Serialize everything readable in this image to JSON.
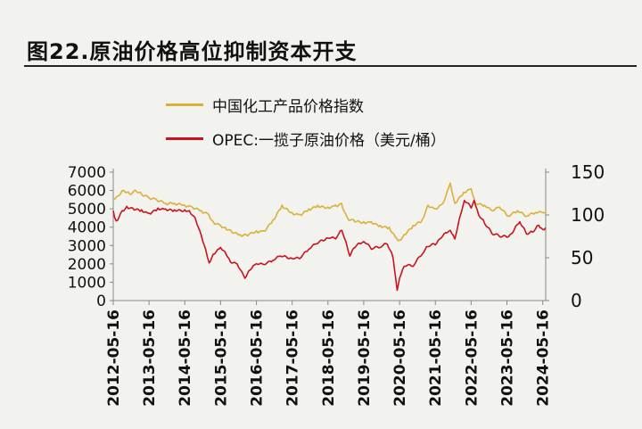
{
  "title": "图22.原油价格高位抑制资本开支",
  "colors": {
    "series1": "#D9B13A",
    "series2": "#C8141E",
    "axis": "#888888",
    "background": "#f2f2ee"
  },
  "chart_data": {
    "type": "line",
    "legend_placement": "top",
    "grid": false,
    "x_tick_labels": [
      "2012-05-16",
      "2013-05-16",
      "2014-05-16",
      "2015-05-16",
      "2016-05-16",
      "2017-05-16",
      "2018-05-16",
      "2019-05-16",
      "2020-05-16",
      "2021-05-16",
      "2022-05-16",
      "2023-05-16",
      "2024-05-16"
    ],
    "xlim": [
      "2012-05-16",
      "2024-06-15"
    ],
    "y_left": {
      "ticks": [
        0,
        1000,
        2000,
        3000,
        4000,
        5000,
        6000,
        7000
      ],
      "ylim": [
        0,
        7000
      ]
    },
    "y_right": {
      "ticks": [
        0,
        50,
        100,
        150
      ],
      "ylim": [
        0,
        150
      ]
    },
    "series": [
      {
        "name": "中国化工产品价格指数",
        "axis": "left",
        "color": "#D9B13A",
        "x": [
          "2012-05-16",
          "2012-07-01",
          "2012-09-01",
          "2012-11-01",
          "2013-01-01",
          "2013-03-01",
          "2013-05-16",
          "2013-08-01",
          "2013-11-01",
          "2014-02-01",
          "2014-05-16",
          "2014-08-01",
          "2014-11-01",
          "2015-01-15",
          "2015-03-01",
          "2015-05-16",
          "2015-07-01",
          "2015-09-01",
          "2015-12-01",
          "2016-02-01",
          "2016-05-16",
          "2016-08-01",
          "2016-11-01",
          "2017-02-01",
          "2017-05-16",
          "2017-08-01",
          "2017-11-01",
          "2018-02-01",
          "2018-05-16",
          "2018-08-01",
          "2018-10-01",
          "2018-12-01",
          "2019-02-01",
          "2019-05-16",
          "2019-08-01",
          "2019-11-01",
          "2020-02-01",
          "2020-04-15",
          "2020-05-16",
          "2020-07-01",
          "2020-10-01",
          "2021-01-01",
          "2021-03-01",
          "2021-05-16",
          "2021-08-01",
          "2021-10-15",
          "2021-12-01",
          "2022-03-01",
          "2022-05-16",
          "2022-07-01",
          "2022-10-01",
          "2022-12-15",
          "2023-03-01",
          "2023-06-01",
          "2023-09-01",
          "2023-12-01",
          "2024-03-01",
          "2024-05-16",
          "2024-06-15"
        ],
        "y": [
          5500,
          5700,
          6000,
          5800,
          6000,
          5800,
          5600,
          5500,
          5300,
          5300,
          5200,
          5100,
          4900,
          4700,
          4300,
          4100,
          4000,
          3800,
          3600,
          3600,
          3800,
          3800,
          4400,
          5200,
          4800,
          4700,
          5000,
          5200,
          5100,
          5200,
          5300,
          4500,
          4400,
          4300,
          4300,
          4100,
          4000,
          3400,
          3300,
          3600,
          4100,
          4400,
          5200,
          5000,
          5300,
          6400,
          5300,
          5900,
          6100,
          5300,
          5200,
          4900,
          5100,
          4600,
          4900,
          4600,
          4800,
          4800,
          4800
        ]
      },
      {
        "name": "OPEC:一揽子原油价格（美元/桶）",
        "axis": "right",
        "color": "#C8141E",
        "x": [
          "2012-05-16",
          "2012-06-15",
          "2012-08-15",
          "2012-10-01",
          "2012-12-01",
          "2013-03-01",
          "2013-05-16",
          "2013-08-15",
          "2013-11-01",
          "2014-02-01",
          "2014-05-16",
          "2014-07-01",
          "2014-09-01",
          "2014-11-01",
          "2014-12-15",
          "2015-01-20",
          "2015-03-01",
          "2015-05-16",
          "2015-07-01",
          "2015-08-25",
          "2015-11-01",
          "2016-01-20",
          "2016-03-01",
          "2016-05-16",
          "2016-08-01",
          "2016-11-01",
          "2017-01-15",
          "2017-05-16",
          "2017-08-01",
          "2017-11-01",
          "2018-01-15",
          "2018-05-16",
          "2018-08-01",
          "2018-10-05",
          "2018-12-25",
          "2019-02-01",
          "2019-05-16",
          "2019-08-01",
          "2019-11-01",
          "2020-01-10",
          "2020-03-10",
          "2020-04-21",
          "2020-05-16",
          "2020-07-01",
          "2020-10-01",
          "2021-01-01",
          "2021-03-01",
          "2021-05-16",
          "2021-07-01",
          "2021-10-15",
          "2021-12-01",
          "2022-03-08",
          "2022-05-16",
          "2022-06-15",
          "2022-08-01",
          "2022-10-01",
          "2022-12-15",
          "2023-03-01",
          "2023-05-16",
          "2023-07-01",
          "2023-09-25",
          "2023-12-01",
          "2024-02-01",
          "2024-04-05",
          "2024-05-16",
          "2024-06-15"
        ],
        "y": [
          105,
          93,
          105,
          110,
          108,
          106,
          102,
          108,
          107,
          106,
          106,
          105,
          96,
          76,
          60,
          44,
          54,
          62,
          57,
          45,
          43,
          26,
          35,
          43,
          42,
          47,
          52,
          49,
          49,
          60,
          66,
          73,
          72,
          82,
          52,
          61,
          69,
          60,
          62,
          66,
          50,
          12,
          26,
          40,
          40,
          54,
          63,
          65,
          72,
          82,
          72,
          117,
          108,
          117,
          100,
          90,
          78,
          75,
          74,
          78,
          92,
          78,
          80,
          88,
          83,
          85
        ]
      }
    ]
  }
}
